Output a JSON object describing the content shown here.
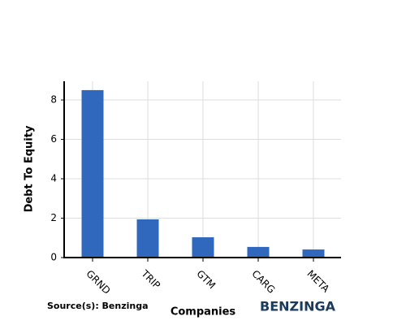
{
  "chart_data": {
    "type": "bar",
    "x_label": "Companies",
    "y_label": "Debt To Equity",
    "source": "Source(s): Benzinga",
    "brand": "BENZINGA",
    "categories": [
      "GRND",
      "TRIP",
      "GTM",
      "CARG",
      "META"
    ],
    "values": [
      8.5,
      1.94,
      1.03,
      0.54,
      0.41
    ],
    "color": "#3068be",
    "ylim": [
      0,
      8.95
    ],
    "yticks": [
      0,
      2,
      4,
      6,
      8
    ],
    "grid": true
  }
}
